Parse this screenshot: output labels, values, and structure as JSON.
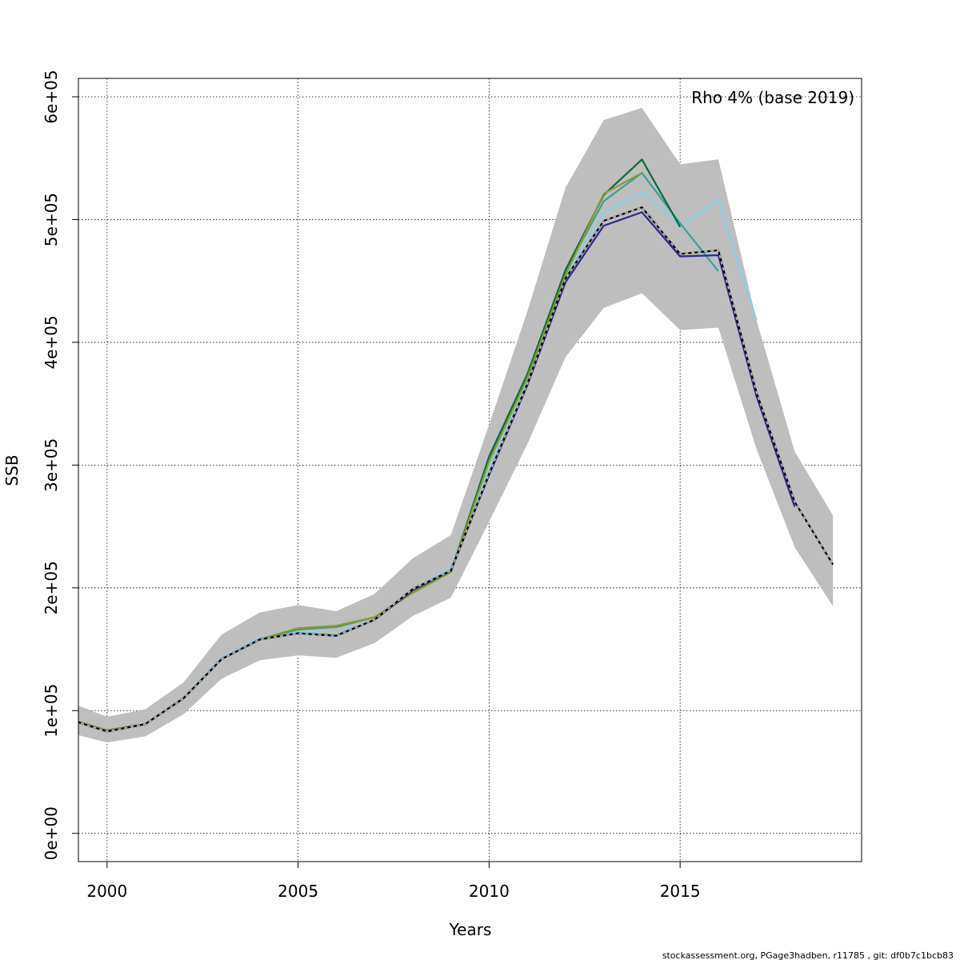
{
  "chart_data": {
    "type": "line",
    "title": "",
    "xlabel": "Years",
    "ylabel": "SSB",
    "annotation": "Rho 4% (base 2019)",
    "footer": "stockassessment.org, PGage3hadben, r11785 , git: df0b7c1bcb83",
    "xlim": [
      1999.25,
      2019.75
    ],
    "ylim": [
      -23000,
      615000
    ],
    "grid": true,
    "x_ticks": [
      2000,
      2005,
      2010,
      2015
    ],
    "x_tick_labels": [
      "2000",
      "2005",
      "2010",
      "2015"
    ],
    "y_ticks": [
      0,
      100000,
      200000,
      300000,
      400000,
      500000,
      600000
    ],
    "y_tick_labels": [
      "0e+00",
      "1e+05",
      "2e+05",
      "3e+05",
      "4e+05",
      "5e+05",
      "6e+05"
    ],
    "confidence_band": {
      "color": "#bebebe",
      "x": [
        1999,
        2000,
        2001,
        2002,
        2003,
        2004,
        2005,
        2006,
        2007,
        2008,
        2009,
        2010,
        2011,
        2012,
        2013,
        2014,
        2015,
        2016,
        2017,
        2018,
        2019
      ],
      "lower": [
        82000,
        74000,
        79000,
        97000,
        126000,
        141000,
        145000,
        143000,
        155000,
        177000,
        192000,
        254000,
        317000,
        388000,
        428000,
        440000,
        410000,
        412000,
        313000,
        233000,
        185000
      ],
      "upper": [
        107000,
        95000,
        101000,
        123000,
        162000,
        180000,
        186000,
        181000,
        195000,
        224000,
        243000,
        333000,
        425000,
        526000,
        581000,
        591000,
        545000,
        549000,
        418000,
        311000,
        259000
      ]
    },
    "series": [
      {
        "color": "#87ceeb",
        "dashed": false,
        "x": [
          1999,
          2000,
          2001,
          2002,
          2003,
          2004,
          2005,
          2006,
          2007,
          2008,
          2009,
          2010,
          2011,
          2012,
          2013,
          2014,
          2015,
          2016,
          2017
        ],
        "values": [
          93000,
          83000,
          89000,
          110000,
          143000,
          159000,
          164000,
          162000,
          174000,
          198000,
          216000,
          298000,
          369000,
          455000,
          505000,
          523000,
          495000,
          516000,
          418000
        ]
      },
      {
        "color": "#3aa09a",
        "dashed": false,
        "x": [
          1999,
          2000,
          2001,
          2002,
          2003,
          2004,
          2005,
          2006,
          2007,
          2008,
          2009,
          2010,
          2011,
          2012,
          2013,
          2014,
          2015,
          2016
        ],
        "values": [
          93000,
          84000,
          89000,
          110000,
          142000,
          158000,
          166000,
          168000,
          176000,
          196000,
          213000,
          305000,
          373000,
          458000,
          515000,
          538000,
          497000,
          458000
        ]
      },
      {
        "color": "#0b6b3a",
        "dashed": false,
        "x": [
          1999,
          2000,
          2001,
          2002,
          2003,
          2004,
          2005,
          2006,
          2007,
          2008,
          2009,
          2010,
          2011,
          2012,
          2013,
          2014,
          2015
        ],
        "values": [
          93000,
          84000,
          89000,
          110000,
          142000,
          158000,
          167000,
          169000,
          176000,
          196000,
          213000,
          307000,
          374000,
          459000,
          520000,
          549000,
          494000
        ]
      },
      {
        "color": "#8a9a2e",
        "dashed": false,
        "x": [
          1999,
          2000,
          2001,
          2002,
          2003,
          2004,
          2005,
          2006,
          2007,
          2008,
          2009,
          2010,
          2011,
          2012,
          2013,
          2014
        ],
        "values": [
          93000,
          84000,
          89000,
          110000,
          142000,
          158000,
          167000,
          169000,
          176000,
          196000,
          213000,
          303000,
          371000,
          455000,
          521000,
          538000
        ]
      },
      {
        "color": "#2a2a8c",
        "dashed": false,
        "x": [
          1999,
          2000,
          2001,
          2002,
          2003,
          2004,
          2005,
          2006,
          2007,
          2008,
          2009,
          2010,
          2011,
          2012,
          2013,
          2014,
          2015,
          2016,
          2017,
          2018
        ],
        "values": [
          93000,
          83000,
          89000,
          110000,
          142000,
          158000,
          163000,
          161000,
          174000,
          198000,
          214000,
          292000,
          365000,
          449000,
          495000,
          506000,
          470000,
          471000,
          356000,
          266000
        ]
      },
      {
        "color": "#000000",
        "dashed": false,
        "x": [
          1999,
          2000,
          2001,
          2002,
          2003,
          2004,
          2005,
          2006,
          2007,
          2008,
          2009,
          2010,
          2011,
          2012,
          2013,
          2014,
          2015,
          2016,
          2017,
          2018,
          2019
        ],
        "values": [
          93000,
          83000,
          89000,
          110000,
          142000,
          158000,
          163000,
          161000,
          174000,
          199000,
          214000,
          293000,
          366000,
          452000,
          499000,
          510000,
          472000,
          475000,
          359000,
          270000,
          219000
        ]
      },
      {
        "color": "#bebebe",
        "dashed": true,
        "x": [
          1999,
          2000,
          2001,
          2002,
          2003,
          2004,
          2005,
          2006,
          2007,
          2008,
          2009,
          2010,
          2011,
          2012,
          2013,
          2014,
          2015,
          2016,
          2017,
          2018,
          2019
        ],
        "values": [
          93000,
          83000,
          89000,
          110000,
          142000,
          158000,
          163000,
          161000,
          174000,
          199000,
          214000,
          293000,
          366000,
          452000,
          499000,
          510000,
          472000,
          475000,
          359000,
          270000,
          219000
        ]
      }
    ]
  }
}
